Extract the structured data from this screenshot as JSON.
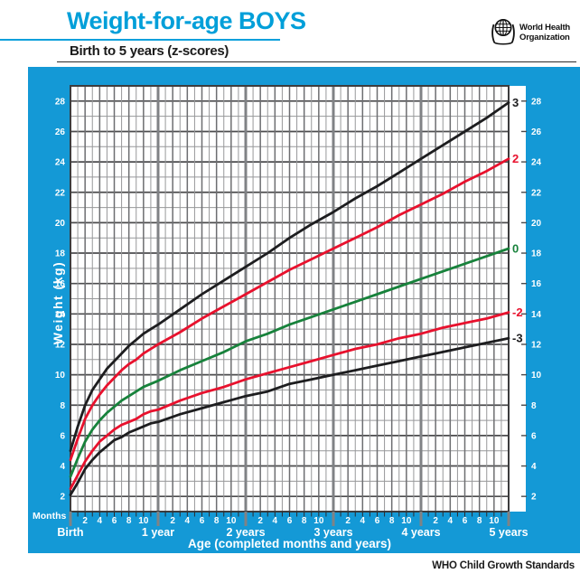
{
  "header": {
    "title": "Weight-for-age BOYS",
    "subtitle": "Birth to 5 years (z-scores)",
    "logo": {
      "line1": "World Health",
      "line2": "Organization"
    }
  },
  "footer": {
    "credit": "WHO Child Growth Standards"
  },
  "colors": {
    "panel_blue": "#1499d6",
    "title_blue": "#009fd9",
    "curve_black": "#1d1d1f",
    "curve_red": "#e8112d",
    "curve_green": "#17823b",
    "grid_minor": "#97989a",
    "grid_medium": "#6d6e71",
    "grid_major": "#4c4c4e",
    "grid_year": "#808285",
    "frame": "#3c3c3e",
    "tick_label": "#ffffff"
  },
  "chart_data": {
    "type": "line",
    "title": "Weight-for-age BOYS",
    "subtitle": "Birth to 5 years (z-scores)",
    "xlabel": "Age (completed months and years)",
    "ylabel": "Weight (kg)",
    "x_unit_label": "Months",
    "xlim_months": [
      0,
      60
    ],
    "ylim": [
      1,
      29
    ],
    "grid": true,
    "y_tick_labels": [
      2,
      4,
      6,
      8,
      10,
      12,
      14,
      16,
      18,
      20,
      22,
      24,
      26,
      28
    ],
    "x_month_tick_labels": [
      2,
      4,
      6,
      8,
      10
    ],
    "x_year_labels": [
      "Birth",
      "1 year",
      "2 years",
      "3 years",
      "4 years",
      "5 years"
    ],
    "legend_position": "right-margin-curve-labels",
    "months": [
      0,
      1,
      2,
      3,
      4,
      5,
      6,
      7,
      8,
      9,
      10,
      11,
      12,
      15,
      18,
      21,
      24,
      27,
      30,
      33,
      36,
      39,
      42,
      45,
      48,
      51,
      54,
      57,
      60
    ],
    "series": [
      {
        "name": "3",
        "zscore": 3,
        "color": "#1d1d1f",
        "values": [
          5.0,
          6.6,
          8.0,
          9.0,
          9.7,
          10.4,
          10.9,
          11.4,
          11.9,
          12.3,
          12.7,
          13.0,
          13.3,
          14.3,
          15.3,
          16.2,
          17.1,
          18.0,
          19.0,
          19.9,
          20.7,
          21.6,
          22.4,
          23.3,
          24.2,
          25.1,
          26.0,
          26.9,
          27.9
        ]
      },
      {
        "name": "2",
        "zscore": 2,
        "color": "#e8112d",
        "values": [
          4.4,
          5.8,
          7.1,
          8.0,
          8.7,
          9.3,
          9.8,
          10.3,
          10.7,
          11.0,
          11.4,
          11.7,
          12.0,
          12.8,
          13.7,
          14.5,
          15.3,
          16.1,
          16.9,
          17.6,
          18.3,
          19.0,
          19.7,
          20.5,
          21.2,
          21.9,
          22.7,
          23.4,
          24.2
        ]
      },
      {
        "name": "0",
        "zscore": 0,
        "color": "#17823b",
        "values": [
          3.3,
          4.5,
          5.6,
          6.4,
          7.0,
          7.5,
          7.9,
          8.3,
          8.6,
          8.9,
          9.2,
          9.4,
          9.6,
          10.3,
          10.9,
          11.5,
          12.2,
          12.7,
          13.3,
          13.8,
          14.3,
          14.8,
          15.3,
          15.8,
          16.3,
          16.8,
          17.3,
          17.8,
          18.3
        ]
      },
      {
        "name": "-2",
        "zscore": -2,
        "color": "#e8112d",
        "values": [
          2.5,
          3.4,
          4.3,
          5.0,
          5.6,
          6.0,
          6.4,
          6.7,
          6.9,
          7.1,
          7.4,
          7.6,
          7.7,
          8.3,
          8.8,
          9.2,
          9.7,
          10.1,
          10.5,
          10.9,
          11.3,
          11.7,
          12.0,
          12.4,
          12.7,
          13.1,
          13.4,
          13.7,
          14.1
        ]
      },
      {
        "name": "-3",
        "zscore": -3,
        "color": "#1d1d1f",
        "values": [
          2.1,
          2.9,
          3.8,
          4.4,
          4.9,
          5.3,
          5.7,
          5.9,
          6.2,
          6.4,
          6.6,
          6.8,
          6.9,
          7.4,
          7.8,
          8.2,
          8.6,
          8.9,
          9.4,
          9.7,
          10.0,
          10.3,
          10.6,
          10.9,
          11.2,
          11.5,
          11.8,
          12.1,
          12.4
        ]
      }
    ]
  }
}
